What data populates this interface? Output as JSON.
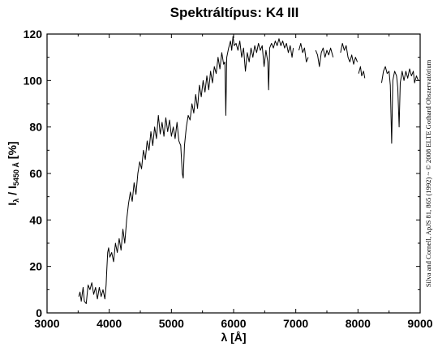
{
  "chart_data": {
    "type": "line",
    "title": "Spektráltípus: K4 III",
    "xlabel": "λ [Å]",
    "ylabel": {
      "main": "I",
      "sub1": "λ",
      "mid": " / I",
      "sub2": "5450 Å",
      "end": " [%]"
    },
    "credit": "Silva and Cornell, ApJS 81, 865 (1992) ~ © 2008 ELTE Gothard Obszervatórium",
    "xlim": [
      3000,
      9000
    ],
    "ylim": [
      0,
      120
    ],
    "xticks": [
      "3000",
      "4000",
      "5000",
      "6000",
      "7000",
      "8000",
      "9000"
    ],
    "yticks": [
      "0",
      "20",
      "40",
      "60",
      "80",
      "100",
      "120"
    ],
    "grid": false,
    "series": [
      {
        "color": "#000000",
        "segments": [
          [
            [
              3510,
              7
            ],
            [
              3530,
              9
            ],
            [
              3550,
              5
            ],
            [
              3580,
              11
            ],
            [
              3600,
              5
            ],
            [
              3630,
              4
            ],
            [
              3660,
              12
            ],
            [
              3690,
              10
            ],
            [
              3720,
              13
            ],
            [
              3750,
              8
            ],
            [
              3780,
              11
            ],
            [
              3810,
              6
            ],
            [
              3840,
              11
            ],
            [
              3870,
              7
            ],
            [
              3900,
              10
            ],
            [
              3930,
              6
            ],
            [
              3950,
              12
            ],
            [
              3960,
              18
            ],
            [
              3975,
              26
            ],
            [
              3990,
              28
            ],
            [
              4010,
              24
            ],
            [
              4040,
              26
            ],
            [
              4070,
              22
            ],
            [
              4100,
              30
            ],
            [
              4130,
              26
            ],
            [
              4160,
              32
            ],
            [
              4190,
              27
            ],
            [
              4220,
              36
            ],
            [
              4250,
              30
            ],
            [
              4280,
              40
            ],
            [
              4310,
              47
            ],
            [
              4340,
              52
            ],
            [
              4370,
              48
            ],
            [
              4400,
              56
            ],
            [
              4430,
              51
            ],
            [
              4460,
              60
            ],
            [
              4490,
              65
            ],
            [
              4520,
              62
            ],
            [
              4550,
              70
            ],
            [
              4580,
              66
            ],
            [
              4610,
              74
            ],
            [
              4640,
              70
            ],
            [
              4670,
              78
            ],
            [
              4700,
              72
            ],
            [
              4730,
              80
            ],
            [
              4760,
              75
            ],
            [
              4790,
              85
            ],
            [
              4820,
              77
            ],
            [
              4850,
              82
            ],
            [
              4880,
              76
            ],
            [
              4910,
              84
            ],
            [
              4940,
              78
            ],
            [
              4970,
              83
            ],
            [
              5000,
              76
            ],
            [
              5030,
              80
            ],
            [
              5060,
              75
            ],
            [
              5090,
              82
            ],
            [
              5120,
              74
            ],
            [
              5150,
              72
            ],
            [
              5175,
              60
            ],
            [
              5190,
              58
            ],
            [
              5210,
              72
            ],
            [
              5240,
              80
            ],
            [
              5270,
              85
            ],
            [
              5300,
              83
            ],
            [
              5330,
              90
            ],
            [
              5360,
              86
            ],
            [
              5390,
              94
            ],
            [
              5420,
              88
            ],
            [
              5450,
              98
            ],
            [
              5480,
              93
            ],
            [
              5510,
              100
            ],
            [
              5540,
              95
            ],
            [
              5570,
              102
            ],
            [
              5600,
              96
            ],
            [
              5630,
              104
            ],
            [
              5660,
              99
            ],
            [
              5690,
              106
            ],
            [
              5720,
              103
            ],
            [
              5750,
              110
            ],
            [
              5780,
              105
            ],
            [
              5810,
              112
            ],
            [
              5840,
              107
            ],
            [
              5860,
              108
            ],
            [
              5875,
              85
            ],
            [
              5890,
              110
            ],
            [
              5920,
              114
            ],
            [
              5950,
              117
            ],
            [
              5970,
              113
            ],
            [
              5990,
              119
            ],
            [
              6010,
              115
            ],
            [
              6040,
              116
            ],
            [
              6070,
              113
            ],
            [
              6100,
              117
            ],
            [
              6130,
              110
            ],
            [
              6160,
              114
            ],
            [
              6190,
              104
            ],
            [
              6220,
              112
            ],
            [
              6250,
              108
            ],
            [
              6280,
              114
            ],
            [
              6310,
              110
            ],
            [
              6340,
              115
            ],
            [
              6370,
              112
            ],
            [
              6400,
              116
            ],
            [
              6430,
              113
            ],
            [
              6460,
              115
            ],
            [
              6490,
              106
            ],
            [
              6520,
              113
            ],
            [
              6550,
              108
            ],
            [
              6563,
              96
            ],
            [
              6580,
              114
            ],
            [
              6610,
              116
            ],
            [
              6640,
              114
            ],
            [
              6670,
              117
            ],
            [
              6700,
              115
            ],
            [
              6730,
              118
            ],
            [
              6760,
              115
            ],
            [
              6790,
              117
            ],
            [
              6820,
              114
            ],
            [
              6850,
              116
            ],
            [
              6880,
              112
            ],
            [
              6910,
              115
            ],
            [
              6940,
              110
            ],
            [
              6960,
              114
            ]
          ],
          [
            [
              7050,
              113
            ],
            [
              7080,
              116
            ],
            [
              7110,
              112
            ],
            [
              7140,
              114
            ],
            [
              7170,
              108
            ],
            [
              7200,
              110
            ]
          ],
          [
            [
              7320,
              113
            ],
            [
              7350,
              111
            ],
            [
              7380,
              106
            ],
            [
              7410,
              112
            ],
            [
              7440,
              114
            ],
            [
              7470,
              110
            ],
            [
              7500,
              113
            ],
            [
              7530,
              111
            ],
            [
              7560,
              114
            ],
            [
              7600,
              110
            ]
          ],
          [
            [
              7720,
              112
            ],
            [
              7750,
              116
            ],
            [
              7780,
              113
            ],
            [
              7810,
              115
            ],
            [
              7840,
              110
            ],
            [
              7870,
              108
            ],
            [
              7900,
              111
            ],
            [
              7930,
              107
            ],
            [
              7960,
              110
            ],
            [
              7990,
              108
            ]
          ],
          [
            [
              8010,
              103
            ],
            [
              8040,
              106
            ],
            [
              8060,
              102
            ],
            [
              8090,
              104
            ],
            [
              8110,
              101
            ]
          ],
          [
            [
              8380,
              99
            ],
            [
              8410,
              104
            ],
            [
              8440,
              106
            ],
            [
              8470,
              103
            ],
            [
              8500,
              104
            ],
            [
              8520,
              98
            ],
            [
              8542,
              73
            ],
            [
              8560,
              100
            ],
            [
              8590,
              104
            ],
            [
              8620,
              102
            ],
            [
              8640,
              97
            ],
            [
              8662,
              80
            ],
            [
              8680,
              99
            ],
            [
              8710,
              104
            ],
            [
              8740,
              100
            ],
            [
              8770,
              104
            ],
            [
              8800,
              101
            ],
            [
              8830,
              105
            ],
            [
              8860,
              102
            ],
            [
              8890,
              104
            ],
            [
              8910,
              99
            ],
            [
              8940,
              102
            ],
            [
              8970,
              100
            ]
          ]
        ]
      }
    ]
  }
}
